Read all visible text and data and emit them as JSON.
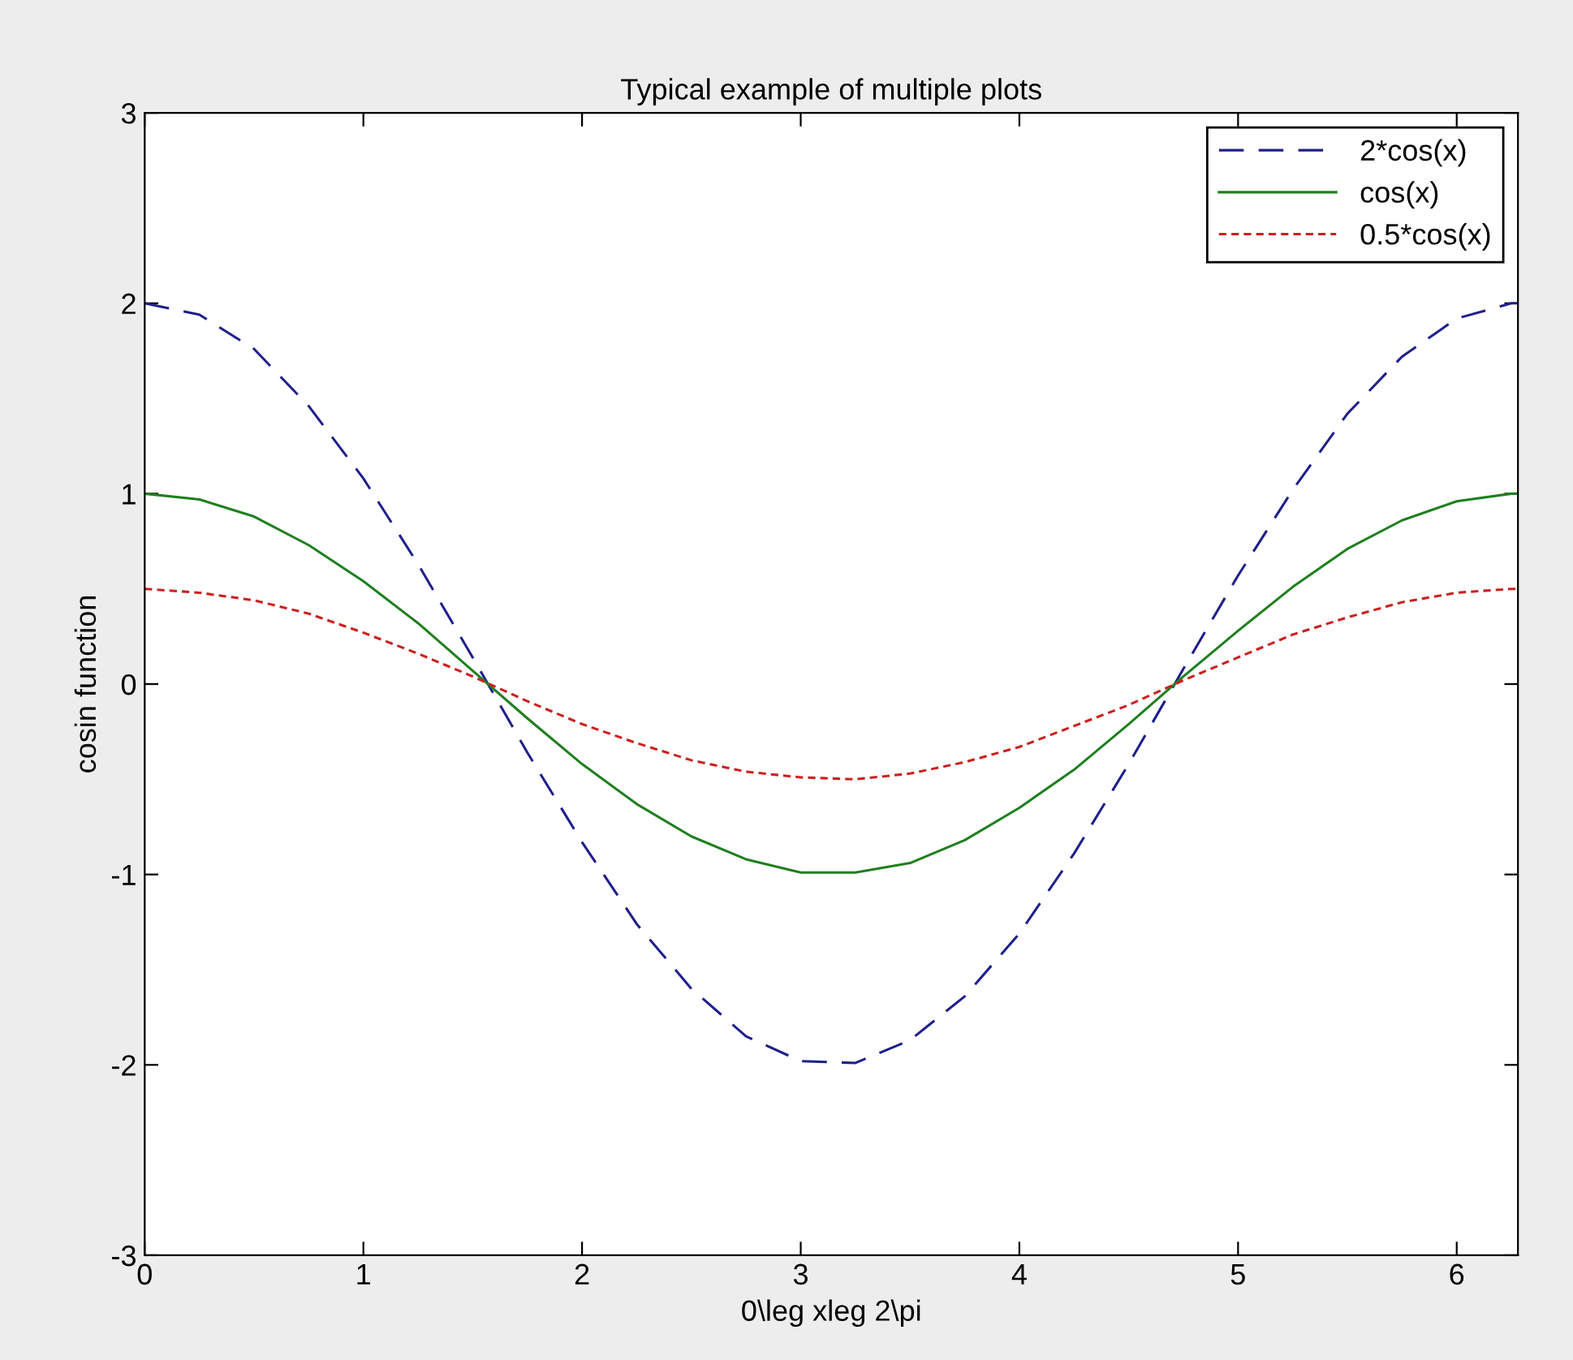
{
  "chart_data": {
    "type": "line",
    "title": "Typical example of multiple plots",
    "xlabel": "0\\leg xleg 2\\pi",
    "ylabel": "cosin function",
    "x": [
      0,
      0.25,
      0.5,
      0.75,
      1,
      1.25,
      1.5,
      1.75,
      2,
      2.25,
      2.5,
      2.75,
      3,
      3.25,
      3.5,
      3.75,
      4,
      4.25,
      4.5,
      4.75,
      5,
      5.25,
      5.5,
      5.75,
      6,
      6.25,
      6.28
    ],
    "series": [
      {
        "name": "2*cos(x)",
        "color": "#1f1f8c",
        "line_style": "dashed",
        "values": [
          2.0,
          1.94,
          1.76,
          1.46,
          1.08,
          0.63,
          0.14,
          -0.36,
          -0.83,
          -1.26,
          -1.6,
          -1.85,
          -1.98,
          -1.99,
          -1.87,
          -1.64,
          -1.31,
          -0.89,
          -0.42,
          0.08,
          0.57,
          1.02,
          1.42,
          1.72,
          1.92,
          2.0,
          2.0
        ]
      },
      {
        "name": "cos(x)",
        "color": "#1f7f1f",
        "line_style": "solid",
        "values": [
          1.0,
          0.97,
          0.88,
          0.73,
          0.54,
          0.32,
          0.07,
          -0.18,
          -0.42,
          -0.63,
          -0.8,
          -0.92,
          -0.99,
          -0.99,
          -0.94,
          -0.82,
          -0.65,
          -0.45,
          -0.21,
          0.04,
          0.28,
          0.51,
          0.71,
          0.86,
          0.96,
          1.0,
          1.0
        ]
      },
      {
        "name": "0.5*cos(x)",
        "color": "#cc1f1f",
        "line_style": "dotted",
        "values": [
          0.5,
          0.48,
          0.44,
          0.37,
          0.27,
          0.16,
          0.04,
          -0.09,
          -0.21,
          -0.31,
          -0.4,
          -0.46,
          -0.49,
          -0.5,
          -0.47,
          -0.41,
          -0.33,
          -0.22,
          -0.11,
          0.02,
          0.14,
          0.26,
          0.35,
          0.43,
          0.48,
          0.5,
          0.5
        ]
      }
    ],
    "xlim": [
      0,
      6.28
    ],
    "ylim": [
      -3,
      3
    ],
    "xticks": [
      0,
      1,
      2,
      3,
      4,
      5,
      6
    ],
    "yticks": [
      -3,
      -2,
      -1,
      0,
      1,
      2,
      3
    ],
    "legend": "top right",
    "grid": false
  }
}
